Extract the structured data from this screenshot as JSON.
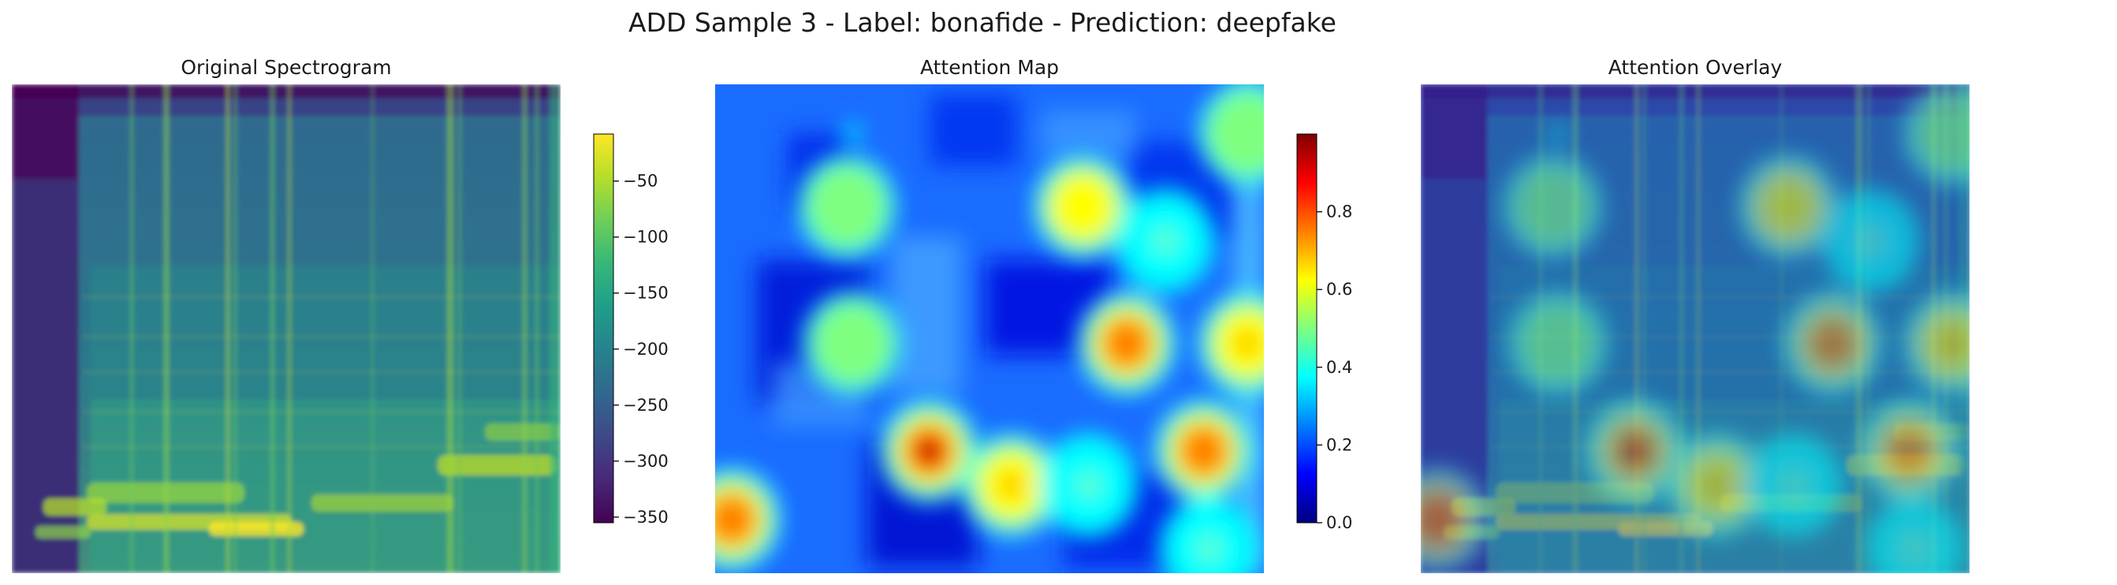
{
  "figure": {
    "title": "ADD Sample 3 - Label: bonafide - Prediction: deepfake"
  },
  "chart_data": [
    {
      "type": "heatmap",
      "title": "Original Spectrogram",
      "colormap": "viridis",
      "axes": "off",
      "colorbar": {
        "min": -355,
        "max": -8,
        "ticks": [
          -50,
          -100,
          -150,
          -200,
          -250,
          -300,
          -350
        ],
        "tick_labels": [
          "−50",
          "−100",
          "−150",
          "−200",
          "−250",
          "−300",
          "−350"
        ]
      }
    },
    {
      "type": "heatmap",
      "title": "Attention Map",
      "colormap": "jet",
      "axes": "off",
      "colorbar": {
        "min": 0,
        "max": 1,
        "ticks": [
          0.8,
          0.6,
          0.4,
          0.2,
          0.0
        ],
        "tick_labels": [
          "0.8",
          "0.6",
          "0.4",
          "0.2",
          "0.0"
        ]
      },
      "hotspots": [
        {
          "x": 0.39,
          "y": 0.75,
          "value": 0.95
        },
        {
          "x": 0.67,
          "y": 0.25,
          "value": 0.65
        },
        {
          "x": 0.24,
          "y": 0.25,
          "value": 0.55
        },
        {
          "x": 0.75,
          "y": 0.53,
          "value": 0.78
        },
        {
          "x": 0.54,
          "y": 0.82,
          "value": 0.72
        },
        {
          "x": 0.89,
          "y": 0.75,
          "value": 0.78
        },
        {
          "x": 0.03,
          "y": 0.89,
          "value": 0.78
        },
        {
          "x": 0.25,
          "y": 0.53,
          "value": 0.5
        },
        {
          "x": 0.97,
          "y": 0.53,
          "value": 0.72
        },
        {
          "x": 0.97,
          "y": 0.1,
          "value": 0.55
        },
        {
          "x": 0.82,
          "y": 0.32,
          "value": 0.45
        },
        {
          "x": 0.68,
          "y": 0.82,
          "value": 0.45
        },
        {
          "x": 0.25,
          "y": 0.1,
          "value": 0.32
        },
        {
          "x": 0.9,
          "y": 0.95,
          "value": 0.45
        }
      ]
    },
    {
      "type": "heatmap",
      "title": "Attention Overlay",
      "colormap": "jet over viridis",
      "axes": "off"
    }
  ],
  "colors": {
    "viridis": [
      "#440154",
      "#482878",
      "#3e4989",
      "#31688e",
      "#26828e",
      "#1f9e89",
      "#35b779",
      "#6ece58",
      "#b5de2b",
      "#fde725"
    ],
    "jet": [
      "#00007f",
      "#0000ff",
      "#007fff",
      "#00ffff",
      "#7fff7f",
      "#ffff00",
      "#ff7f00",
      "#ff0000",
      "#7f0000"
    ]
  }
}
